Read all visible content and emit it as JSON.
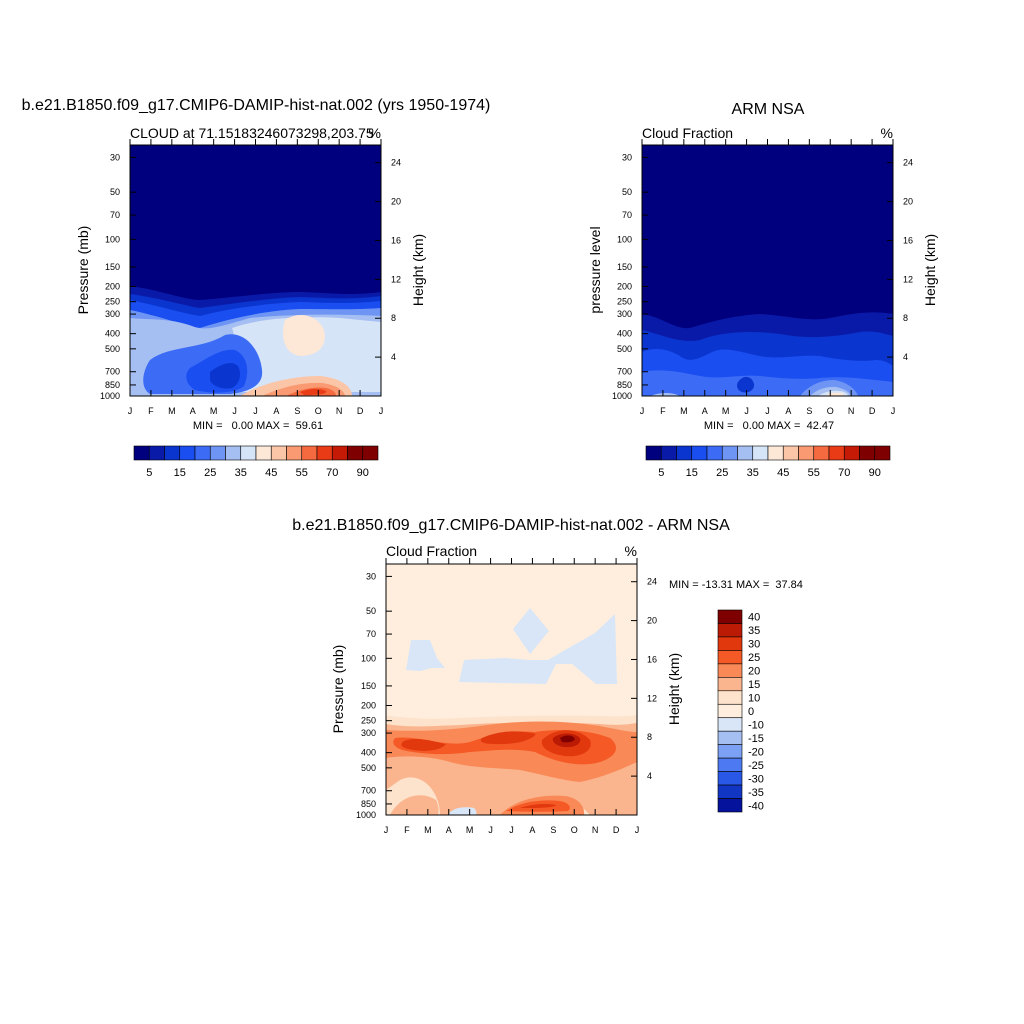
{
  "chart_data": [
    {
      "type": "heatmap",
      "id": "model",
      "title": "b.e21.B1850.f09_g17.CMIP6-DAMIP-hist-nat.002 (yrs 1950-1974)",
      "subtitle_left": "CLOUD at 71.15183246073298,203.75",
      "subtitle_right": "%",
      "ylabel": "Pressure (mb)",
      "ylabel_right": "Height (km)",
      "months": [
        "J",
        "F",
        "M",
        "A",
        "M",
        "J",
        "J",
        "A",
        "S",
        "O",
        "N",
        "D",
        "J"
      ],
      "pressure_ticks": [
        "30",
        "50",
        "70",
        "100",
        "150",
        "200",
        "250",
        "300",
        "400",
        "500",
        "700",
        "850",
        "1000"
      ],
      "height_ticks": [
        "24",
        "20",
        "16",
        "12",
        "8",
        "4"
      ],
      "minmax": "MIN =   0.00 MAX =  59.61",
      "min": 0.0,
      "max": 59.61,
      "colorbar_labels": [
        "5",
        "15",
        "25",
        "35",
        "45",
        "55",
        "70",
        "90"
      ]
    },
    {
      "type": "heatmap",
      "id": "obs",
      "title": "ARM NSA",
      "subtitle_left": "Cloud Fraction",
      "subtitle_right": "%",
      "ylabel": "pressure level",
      "ylabel_right": "Height (km)",
      "months": [
        "J",
        "F",
        "M",
        "A",
        "M",
        "J",
        "J",
        "A",
        "S",
        "O",
        "N",
        "D",
        "J"
      ],
      "pressure_ticks": [
        "30",
        "50",
        "70",
        "100",
        "150",
        "200",
        "250",
        "300",
        "400",
        "500",
        "700",
        "850",
        "1000"
      ],
      "height_ticks": [
        "24",
        "20",
        "16",
        "12",
        "8",
        "4"
      ],
      "minmax": "MIN =   0.00 MAX =  42.47",
      "min": 0.0,
      "max": 42.47,
      "colorbar_labels": [
        "5",
        "15",
        "25",
        "35",
        "45",
        "55",
        "70",
        "90"
      ]
    },
    {
      "type": "heatmap",
      "id": "diff",
      "title": "b.e21.B1850.f09_g17.CMIP6-DAMIP-hist-nat.002 - ARM NSA",
      "subtitle_left": "Cloud Fraction",
      "subtitle_right": "%",
      "ylabel": "Pressure (mb)",
      "ylabel_right": "Height (km)",
      "months": [
        "J",
        "F",
        "M",
        "A",
        "M",
        "J",
        "J",
        "A",
        "S",
        "O",
        "N",
        "D",
        "J"
      ],
      "pressure_ticks": [
        "30",
        "50",
        "70",
        "100",
        "150",
        "200",
        "250",
        "300",
        "400",
        "500",
        "700",
        "850",
        "1000"
      ],
      "height_ticks": [
        "24",
        "20",
        "16",
        "12",
        "8",
        "4"
      ],
      "minmax": "MIN = -13.31 MAX =  37.84",
      "min": -13.31,
      "max": 37.84,
      "colorbar_labels": [
        "40",
        "35",
        "30",
        "25",
        "20",
        "15",
        "10",
        "0",
        "-10",
        "-15",
        "-20",
        "-25",
        "-30",
        "-35",
        "-40"
      ]
    }
  ],
  "colors": {
    "seq": [
      "#00007f",
      "#0a1aa8",
      "#0a35cf",
      "#1a4ef0",
      "#3c6cf5",
      "#6e95f4",
      "#a6bff3",
      "#d6e4f8",
      "#fde7d6",
      "#fbc6a7",
      "#f99a72",
      "#f56a3e",
      "#e93c16",
      "#c41a06",
      "#7f0000"
    ],
    "div": [
      "#7f0000",
      "#bb1a04",
      "#e2380d",
      "#f55a26",
      "#f98a58",
      "#fbb58e",
      "#fde2cc",
      "#ffeedd",
      "#d8e6f8",
      "#a6bff3",
      "#7ca0f3",
      "#4d7af2",
      "#2a58e6",
      "#1236c4",
      "#04129c"
    ]
  }
}
